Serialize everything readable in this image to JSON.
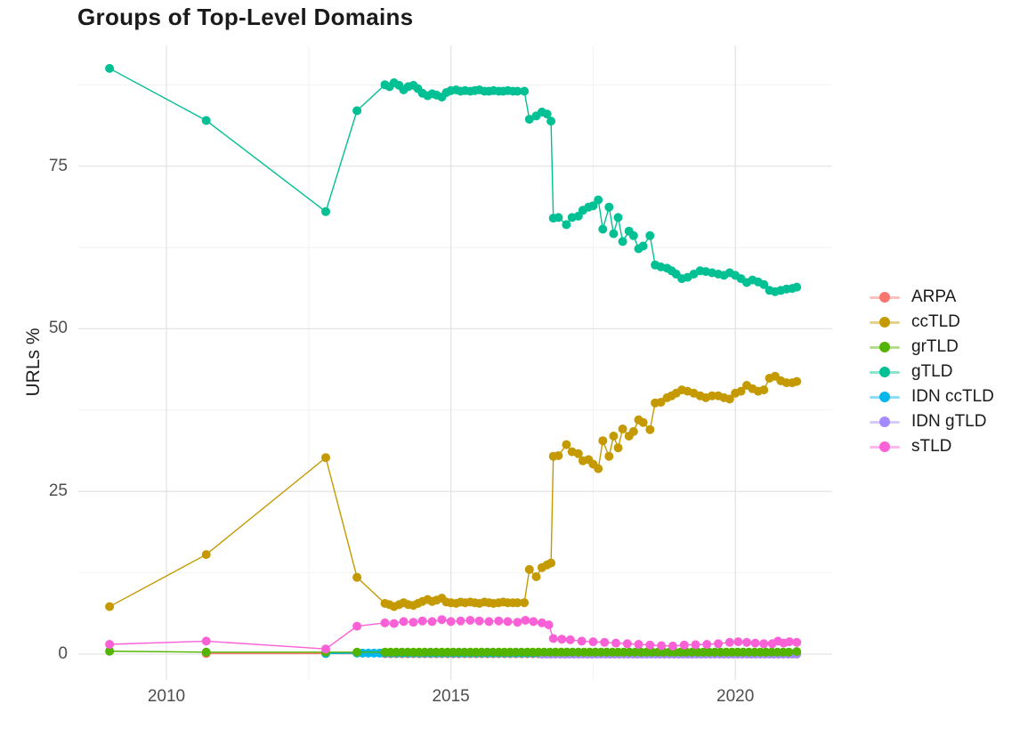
{
  "chart_data": {
    "type": "line",
    "title": "Groups of Top-Level Domains",
    "xlabel": "",
    "ylabel": "URLs %",
    "xlim": [
      2008.45,
      2021.7
    ],
    "ylim": [
      -4,
      93.5
    ],
    "grid": true,
    "legend_position": "right",
    "background": "#FFFFFF",
    "grid_major_color": "#E4E4E4",
    "grid_minor_color": "#F2F2F2",
    "tick_text_color": "#4E4E4E",
    "x_ticks": [
      {
        "label": "2010",
        "value": 2010
      },
      {
        "label": "2015",
        "value": 2015
      },
      {
        "label": "2020",
        "value": 2020
      }
    ],
    "y_ticks": [
      {
        "label": "0",
        "value": 0
      },
      {
        "label": "25",
        "value": 25
      },
      {
        "label": "50",
        "value": 50
      },
      {
        "label": "75",
        "value": 75
      }
    ],
    "x_minor": [
      2012.5,
      2017.5
    ],
    "y_minor": [
      12.5,
      37.5,
      62.5,
      87.5
    ],
    "series": [
      {
        "name": "ARPA",
        "color": "#F8766D",
        "points": [
          [
            2010.7,
            0.1
          ],
          [
            2012.8,
            0.1
          ]
        ],
        "flat": {
          "from": 2013.84,
          "to": 2021.08,
          "step": 0.1,
          "value": 0.05
        }
      },
      {
        "name": "ccTLD",
        "color": "#C49A00",
        "points": [
          [
            2009,
            7.3
          ],
          [
            2010.7,
            15.3
          ],
          [
            2012.8,
            30.2
          ],
          [
            2013.35,
            11.8
          ],
          [
            2013.84,
            7.8
          ],
          [
            2013.92,
            7.6
          ],
          [
            2014,
            7.3
          ],
          [
            2014.09,
            7.6
          ],
          [
            2014.17,
            7.9
          ],
          [
            2014.25,
            7.6
          ],
          [
            2014.34,
            7.5
          ],
          [
            2014.42,
            7.8
          ],
          [
            2014.5,
            8.1
          ],
          [
            2014.59,
            8.4
          ],
          [
            2014.67,
            8.1
          ],
          [
            2014.75,
            8.3
          ],
          [
            2014.84,
            8.6
          ],
          [
            2014.92,
            8
          ],
          [
            2015,
            7.9
          ],
          [
            2015.09,
            7.8
          ],
          [
            2015.17,
            8
          ],
          [
            2015.25,
            7.9
          ],
          [
            2015.34,
            8
          ],
          [
            2015.42,
            7.9
          ],
          [
            2015.5,
            7.8
          ],
          [
            2015.59,
            8
          ],
          [
            2015.67,
            7.9
          ],
          [
            2015.75,
            7.8
          ],
          [
            2015.84,
            7.9
          ],
          [
            2015.92,
            8
          ],
          [
            2016,
            7.9
          ],
          [
            2016.09,
            7.9
          ],
          [
            2016.17,
            7.9
          ],
          [
            2016.29,
            7.9
          ],
          [
            2016.38,
            13
          ],
          [
            2016.5,
            11.9
          ],
          [
            2016.6,
            13.3
          ],
          [
            2016.69,
            13.7
          ],
          [
            2016.76,
            14
          ],
          [
            2016.8,
            30.4
          ],
          [
            2016.89,
            30.5
          ],
          [
            2017.03,
            32.2
          ],
          [
            2017.13,
            31.1
          ],
          [
            2017.24,
            30.8
          ],
          [
            2017.32,
            29.7
          ],
          [
            2017.42,
            29.9
          ],
          [
            2017.5,
            29.2
          ],
          [
            2017.59,
            28.5
          ],
          [
            2017.67,
            32.8
          ],
          [
            2017.78,
            30.4
          ],
          [
            2017.86,
            33.5
          ],
          [
            2017.94,
            31.7
          ],
          [
            2018.02,
            34.6
          ],
          [
            2018.13,
            33.5
          ],
          [
            2018.21,
            34.2
          ],
          [
            2018.3,
            36
          ],
          [
            2018.38,
            35.6
          ],
          [
            2018.5,
            34.5
          ],
          [
            2018.59,
            38.6
          ],
          [
            2018.69,
            38.7
          ],
          [
            2018.8,
            39.4
          ],
          [
            2018.88,
            39.7
          ],
          [
            2018.96,
            40.1
          ],
          [
            2019.06,
            40.6
          ],
          [
            2019.16,
            40.4
          ],
          [
            2019.27,
            40.1
          ],
          [
            2019.38,
            39.7
          ],
          [
            2019.48,
            39.4
          ],
          [
            2019.59,
            39.7
          ],
          [
            2019.7,
            39.7
          ],
          [
            2019.8,
            39.4
          ],
          [
            2019.9,
            39.2
          ],
          [
            2020,
            40.1
          ],
          [
            2020.1,
            40.4
          ],
          [
            2020.2,
            41.3
          ],
          [
            2020.3,
            40.8
          ],
          [
            2020.4,
            40.4
          ],
          [
            2020.5,
            40.6
          ],
          [
            2020.6,
            42.4
          ],
          [
            2020.7,
            42.7
          ],
          [
            2020.8,
            42
          ],
          [
            2020.9,
            41.7
          ],
          [
            2021,
            41.7
          ],
          [
            2021.08,
            41.9
          ]
        ]
      },
      {
        "name": "grTLD",
        "color": "#53B400",
        "points": [
          [
            2009,
            0.45
          ],
          [
            2010.7,
            0.3
          ],
          [
            2012.8,
            0.3
          ],
          [
            2013.35,
            0.3
          ],
          [
            2021.08,
            0.4
          ]
        ],
        "flat": {
          "from": 2013.84,
          "to": 2021.0,
          "step": 0.1,
          "value": 0.3
        }
      },
      {
        "name": "gTLD",
        "color": "#00C094",
        "points": [
          [
            2009,
            90
          ],
          [
            2010.7,
            82
          ],
          [
            2012.8,
            68
          ],
          [
            2013.35,
            83.5
          ],
          [
            2013.84,
            87.5
          ],
          [
            2013.92,
            87.2
          ],
          [
            2014,
            87.8
          ],
          [
            2014.09,
            87.4
          ],
          [
            2014.17,
            86.7
          ],
          [
            2014.25,
            87.2
          ],
          [
            2014.34,
            87.4
          ],
          [
            2014.42,
            86.9
          ],
          [
            2014.5,
            86.2
          ],
          [
            2014.59,
            85.8
          ],
          [
            2014.67,
            86.1
          ],
          [
            2014.75,
            85.9
          ],
          [
            2014.84,
            85.6
          ],
          [
            2014.92,
            86.3
          ],
          [
            2015,
            86.6
          ],
          [
            2015.09,
            86.7
          ],
          [
            2015.17,
            86.5
          ],
          [
            2015.25,
            86.6
          ],
          [
            2015.34,
            86.5
          ],
          [
            2015.42,
            86.6
          ],
          [
            2015.5,
            86.7
          ],
          [
            2015.59,
            86.5
          ],
          [
            2015.67,
            86.5
          ],
          [
            2015.75,
            86.6
          ],
          [
            2015.84,
            86.5
          ],
          [
            2015.92,
            86.5
          ],
          [
            2016,
            86.6
          ],
          [
            2016.09,
            86.5
          ],
          [
            2016.17,
            86.5
          ],
          [
            2016.29,
            86.5
          ],
          [
            2016.38,
            82.2
          ],
          [
            2016.5,
            82.7
          ],
          [
            2016.6,
            83.3
          ],
          [
            2016.69,
            83
          ],
          [
            2016.76,
            81.9
          ],
          [
            2016.8,
            67
          ],
          [
            2016.89,
            67.1
          ],
          [
            2017.03,
            66
          ],
          [
            2017.13,
            67.1
          ],
          [
            2017.24,
            67.3
          ],
          [
            2017.32,
            68.2
          ],
          [
            2017.42,
            68.7
          ],
          [
            2017.5,
            68.9
          ],
          [
            2017.59,
            69.8
          ],
          [
            2017.67,
            65.3
          ],
          [
            2017.78,
            68.7
          ],
          [
            2017.86,
            64.6
          ],
          [
            2017.94,
            67.1
          ],
          [
            2018.02,
            63.4
          ],
          [
            2018.13,
            65
          ],
          [
            2018.21,
            64.3
          ],
          [
            2018.3,
            62.3
          ],
          [
            2018.38,
            62.7
          ],
          [
            2018.5,
            64.3
          ],
          [
            2018.59,
            59.8
          ],
          [
            2018.69,
            59.5
          ],
          [
            2018.8,
            59.3
          ],
          [
            2018.88,
            58.9
          ],
          [
            2018.96,
            58.4
          ],
          [
            2019.06,
            57.7
          ],
          [
            2019.16,
            57.9
          ],
          [
            2019.27,
            58.4
          ],
          [
            2019.38,
            58.9
          ],
          [
            2019.48,
            58.8
          ],
          [
            2019.59,
            58.6
          ],
          [
            2019.7,
            58.4
          ],
          [
            2019.8,
            58.2
          ],
          [
            2019.9,
            58.6
          ],
          [
            2020,
            58.2
          ],
          [
            2020.1,
            57.7
          ],
          [
            2020.2,
            57.1
          ],
          [
            2020.3,
            57.5
          ],
          [
            2020.4,
            57.2
          ],
          [
            2020.5,
            56.8
          ],
          [
            2020.6,
            55.9
          ],
          [
            2020.7,
            55.7
          ],
          [
            2020.8,
            55.9
          ],
          [
            2020.9,
            56.1
          ],
          [
            2021,
            56.2
          ],
          [
            2021.08,
            56.4
          ]
        ]
      },
      {
        "name": "IDN ccTLD",
        "color": "#00B6EB",
        "points": [
          [
            2012.8,
            0.1
          ]
        ],
        "flat": {
          "from": 2013.35,
          "to": 2021.08,
          "step": 0.1,
          "value": 0.15
        }
      },
      {
        "name": "IDN gTLD",
        "color": "#A58AFF",
        "points": [],
        "flat": {
          "from": 2016.6,
          "to": 2021.08,
          "step": 0.08,
          "value": 0.0
        }
      },
      {
        "name": "sTLD",
        "color": "#FB61D7",
        "points": [
          [
            2009,
            1.5
          ],
          [
            2010.7,
            2
          ],
          [
            2012.8,
            0.8
          ],
          [
            2013.35,
            4.3
          ],
          [
            2013.84,
            4.8
          ],
          [
            2014,
            4.7
          ],
          [
            2014.17,
            5
          ],
          [
            2014.34,
            4.9
          ],
          [
            2014.5,
            5.1
          ],
          [
            2014.67,
            5
          ],
          [
            2014.84,
            5.3
          ],
          [
            2015,
            5
          ],
          [
            2015.17,
            5.1
          ],
          [
            2015.34,
            5.2
          ],
          [
            2015.5,
            5.1
          ],
          [
            2015.67,
            5
          ],
          [
            2015.84,
            5.1
          ],
          [
            2016,
            5
          ],
          [
            2016.17,
            4.9
          ],
          [
            2016.31,
            5.2
          ],
          [
            2016.45,
            5
          ],
          [
            2016.6,
            4.8
          ],
          [
            2016.72,
            4.5
          ],
          [
            2016.8,
            2.4
          ],
          [
            2016.95,
            2.3
          ],
          [
            2017.1,
            2.2
          ],
          [
            2017.3,
            2
          ],
          [
            2017.5,
            1.9
          ],
          [
            2017.7,
            1.8
          ],
          [
            2017.9,
            1.7
          ],
          [
            2018.1,
            1.6
          ],
          [
            2018.3,
            1.5
          ],
          [
            2018.5,
            1.4
          ],
          [
            2018.7,
            1.3
          ],
          [
            2018.9,
            1.25
          ],
          [
            2019.1,
            1.4
          ],
          [
            2019.3,
            1.45
          ],
          [
            2019.5,
            1.5
          ],
          [
            2019.7,
            1.6
          ],
          [
            2019.9,
            1.8
          ],
          [
            2020.05,
            1.9
          ],
          [
            2020.2,
            1.8
          ],
          [
            2020.35,
            1.7
          ],
          [
            2020.5,
            1.6
          ],
          [
            2020.65,
            1.6
          ],
          [
            2020.75,
            2
          ],
          [
            2020.85,
            1.7
          ],
          [
            2020.95,
            1.9
          ],
          [
            2021.08,
            1.8
          ]
        ]
      }
    ]
  }
}
